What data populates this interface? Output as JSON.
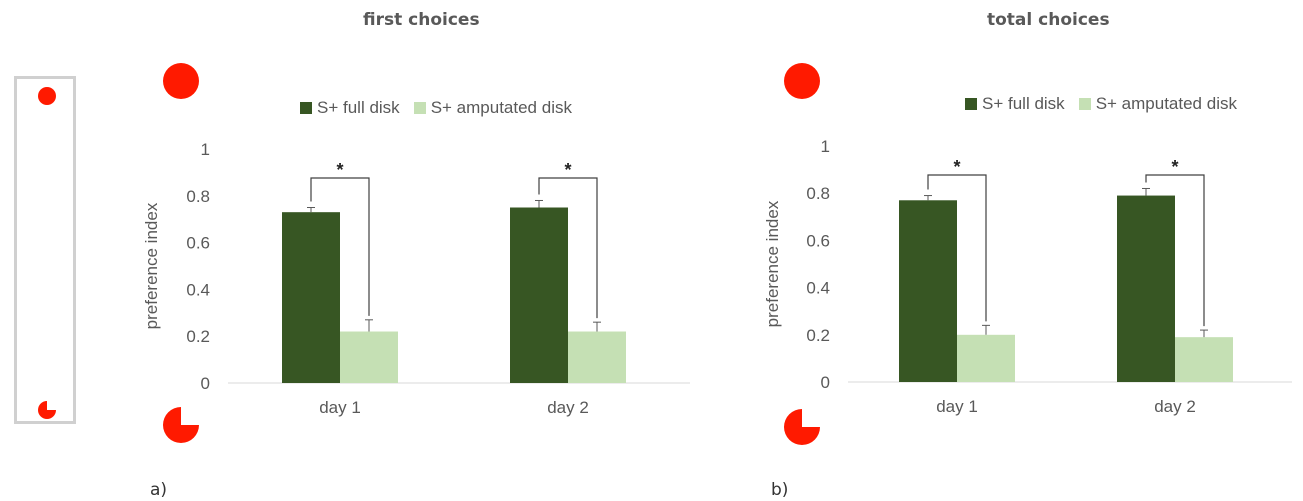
{
  "colors": {
    "full": "#375623",
    "amputated": "#c5e0b4",
    "stimulus": "#ff1a00",
    "axis_text": "#595959"
  },
  "panels": [
    {
      "label": "a)",
      "title": "first choices"
    },
    {
      "label": "b)",
      "title": "total choices"
    }
  ],
  "chart_data": [
    {
      "type": "bar",
      "title": "first choices",
      "ylabel": "preference index",
      "xlabel": "",
      "ylim": [
        0,
        1
      ],
      "yticks": [
        "0",
        "0.2",
        "0.4",
        "0.6",
        "0.8",
        "1"
      ],
      "categories": [
        "day 1",
        "day 2"
      ],
      "series": [
        {
          "name": "S+ full disk",
          "values": [
            0.73,
            0.75
          ],
          "errors": [
            0.02,
            0.03
          ]
        },
        {
          "name": "S+ amputated disk",
          "values": [
            0.22,
            0.22
          ],
          "errors": [
            0.05,
            0.04
          ]
        }
      ],
      "significance": [
        "*",
        "*"
      ],
      "legend_position": "top",
      "grid": false
    },
    {
      "type": "bar",
      "title": "total choices",
      "ylabel": "preference index",
      "xlabel": "",
      "ylim": [
        0,
        1
      ],
      "yticks": [
        "0",
        "0.2",
        "0.4",
        "0.6",
        "0.8",
        "1"
      ],
      "categories": [
        "day 1",
        "day 2"
      ],
      "series": [
        {
          "name": "S+ full disk",
          "values": [
            0.77,
            0.79
          ],
          "errors": [
            0.02,
            0.03
          ]
        },
        {
          "name": "S+ amputated disk",
          "values": [
            0.2,
            0.19
          ],
          "errors": [
            0.04,
            0.03
          ]
        }
      ],
      "significance": [
        "*",
        "*"
      ],
      "legend_position": "top",
      "grid": false
    }
  ]
}
